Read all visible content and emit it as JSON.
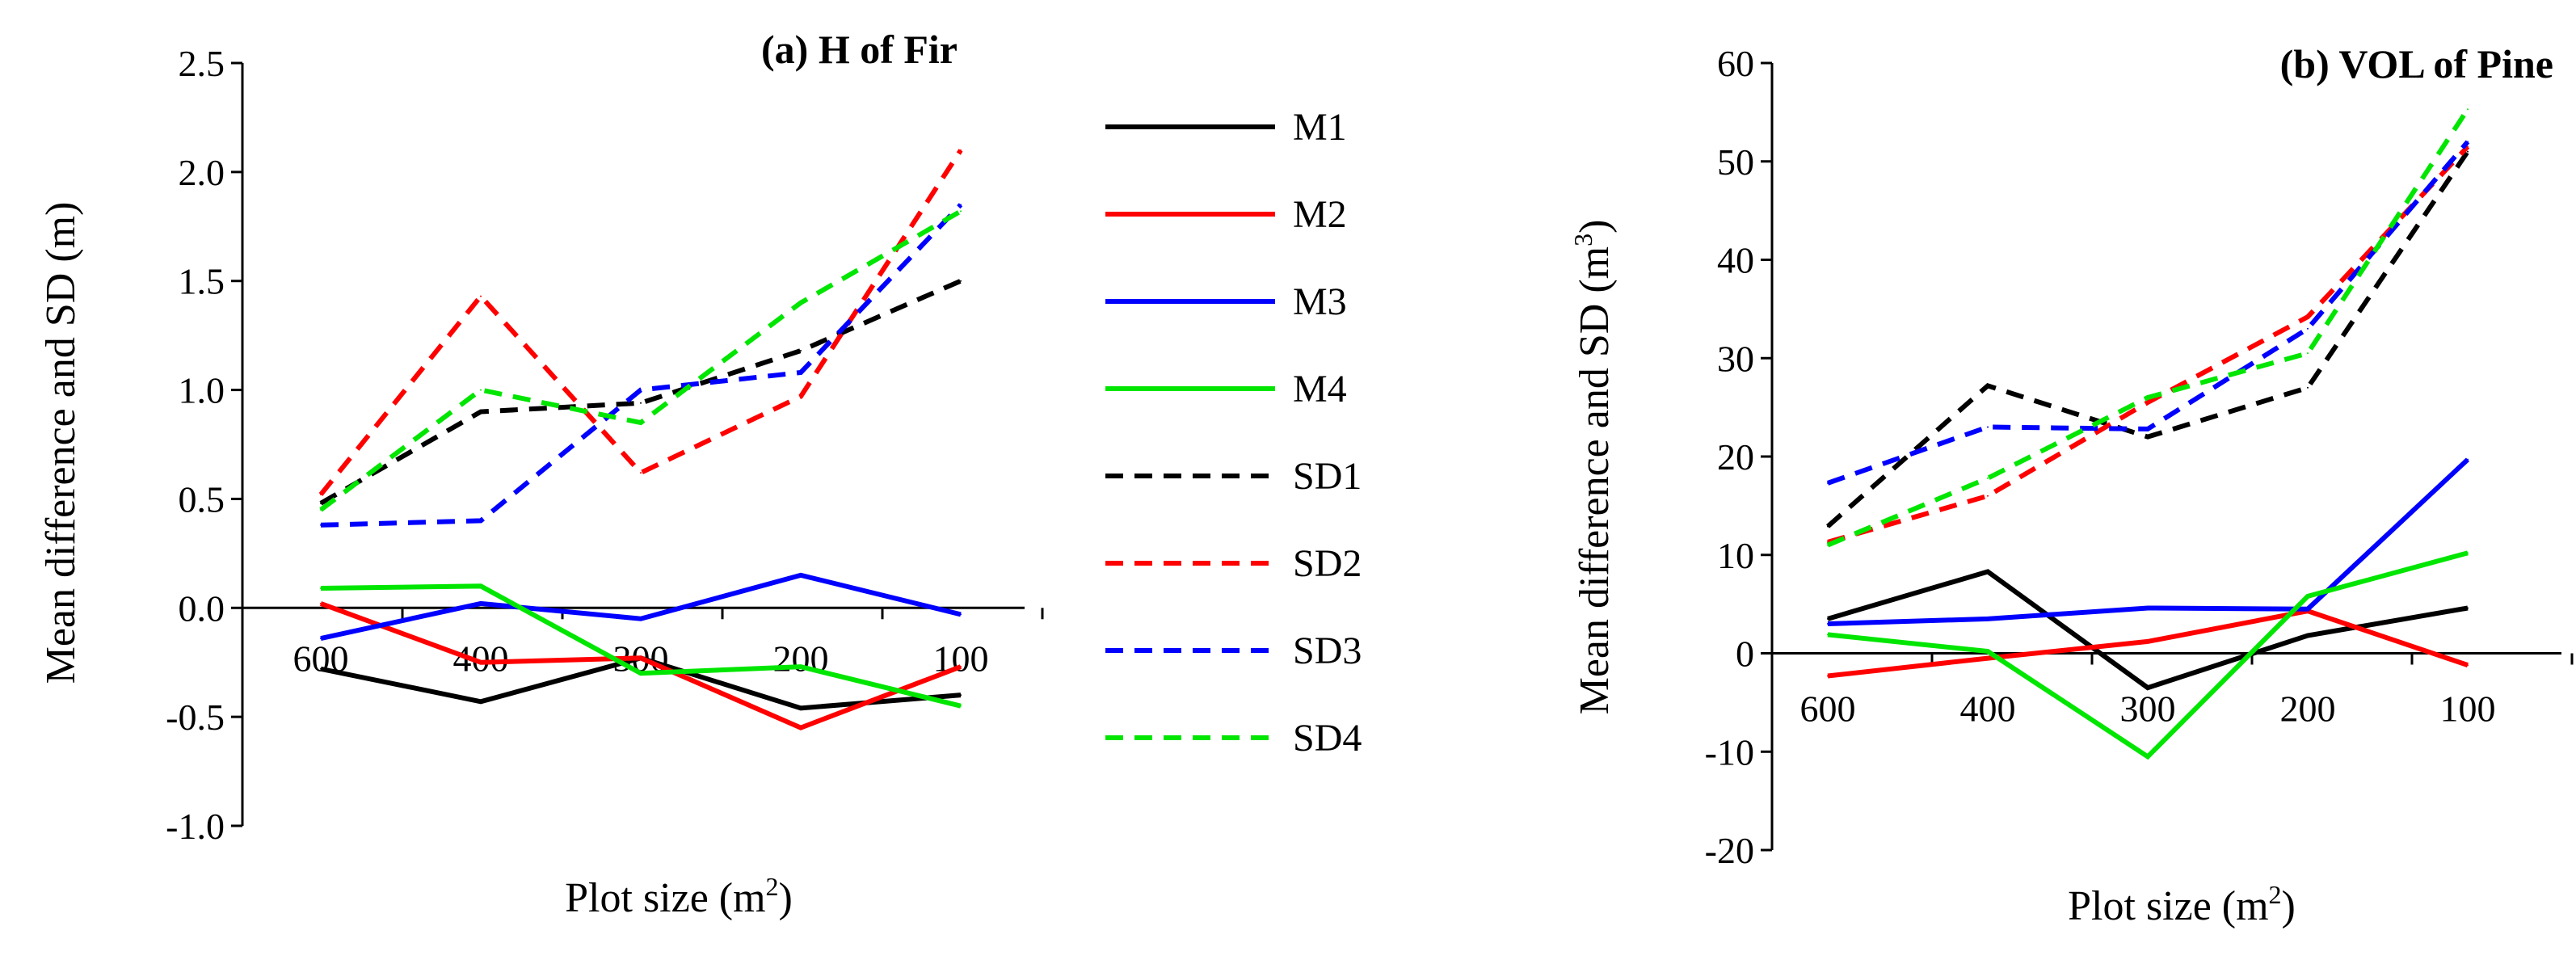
{
  "chart_data": [
    {
      "type": "line",
      "title": "(a) H of Fir",
      "ylabel": "Mean difference and SD (m)",
      "xlabel": "Plot size (m",
      "xlabel_sup": "2",
      "xlabel_close": ")",
      "categories": [
        "600",
        "400",
        "300",
        "200",
        "100"
      ],
      "ylim": [
        -1.0,
        2.5
      ],
      "yticks": [
        "2.5",
        "2.0",
        "1.5",
        "1.0",
        "0.5",
        "0.0",
        "-0.5",
        "-1.0"
      ],
      "series": [
        {
          "name": "M1",
          "values": [
            -0.28,
            -0.43,
            -0.23,
            -0.46,
            -0.4
          ]
        },
        {
          "name": "M2",
          "values": [
            0.02,
            -0.25,
            -0.23,
            -0.55,
            -0.27
          ]
        },
        {
          "name": "M3",
          "values": [
            -0.14,
            0.02,
            -0.05,
            0.15,
            -0.03
          ]
        },
        {
          "name": "M4",
          "values": [
            0.09,
            0.1,
            -0.3,
            -0.27,
            -0.45
          ]
        },
        {
          "name": "SD1",
          "values": [
            0.48,
            0.9,
            0.94,
            1.18,
            1.5
          ]
        },
        {
          "name": "SD2",
          "values": [
            0.52,
            1.43,
            0.62,
            0.97,
            2.1
          ]
        },
        {
          "name": "SD3",
          "values": [
            0.38,
            0.4,
            1.0,
            1.08,
            1.85
          ]
        },
        {
          "name": "SD4",
          "values": [
            0.45,
            1.0,
            0.85,
            1.4,
            1.82
          ]
        }
      ]
    },
    {
      "type": "line",
      "title": "(b) VOL of Pine",
      "ylabel": "Mean difference and SD (m",
      "ylabel_sup": "3",
      "ylabel_close": ")",
      "xlabel": "Plot size (m",
      "xlabel_sup": "2",
      "xlabel_close": ")",
      "categories": [
        "600",
        "400",
        "300",
        "200",
        "100"
      ],
      "ylim": [
        -20,
        60
      ],
      "yticks": [
        "60",
        "50",
        "40",
        "30",
        "20",
        "10",
        "0",
        "-10",
        "-20"
      ],
      "series": [
        {
          "name": "M1",
          "values": [
            3.5,
            8.3,
            -3.5,
            1.8,
            4.6
          ]
        },
        {
          "name": "M2",
          "values": [
            -2.3,
            -0.5,
            1.2,
            4.3,
            -1.2
          ]
        },
        {
          "name": "M3",
          "values": [
            3.0,
            3.5,
            4.6,
            4.5,
            19.7
          ]
        },
        {
          "name": "M4",
          "values": [
            1.9,
            0.2,
            -10.5,
            5.8,
            10.2
          ]
        },
        {
          "name": "SD1",
          "values": [
            12.9,
            27.2,
            22.0,
            27.0,
            51.0
          ]
        },
        {
          "name": "SD2",
          "values": [
            11.3,
            16.0,
            25.5,
            34.2,
            51.5
          ]
        },
        {
          "name": "SD3",
          "values": [
            17.3,
            23.0,
            22.8,
            33.0,
            52.0
          ]
        },
        {
          "name": "SD4",
          "values": [
            11.0,
            17.8,
            26.0,
            30.5,
            55.3
          ]
        }
      ]
    }
  ],
  "legend": [
    {
      "name": "M1",
      "color": "#000000",
      "dash": false
    },
    {
      "name": "M2",
      "color": "#ff0000",
      "dash": false
    },
    {
      "name": "M3",
      "color": "#0000ff",
      "dash": false
    },
    {
      "name": "M4",
      "color": "#00e600",
      "dash": false
    },
    {
      "name": "SD1",
      "color": "#000000",
      "dash": true
    },
    {
      "name": "SD2",
      "color": "#ff0000",
      "dash": true
    },
    {
      "name": "SD3",
      "color": "#0000ff",
      "dash": true
    },
    {
      "name": "SD4",
      "color": "#00e600",
      "dash": true
    }
  ]
}
